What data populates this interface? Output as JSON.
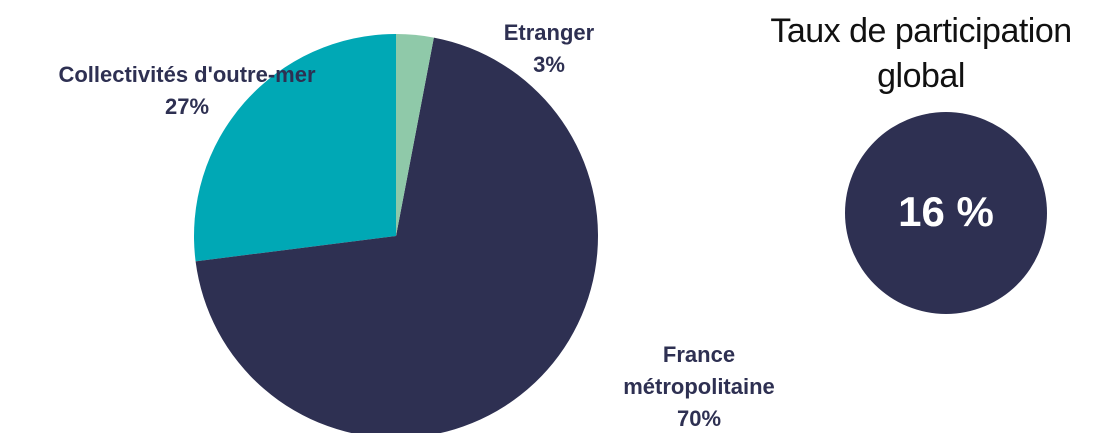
{
  "chart_data": {
    "type": "pie",
    "categories": [
      "Etranger",
      "France métropolitaine",
      "Collectivités d'outre-mer"
    ],
    "values": [
      3,
      70,
      27
    ],
    "value_labels": [
      "3%",
      "70%",
      "27%"
    ],
    "colors": [
      "#8fc9a9",
      "#2e3052",
      "#00a8b5"
    ]
  },
  "kpi": {
    "title_lines": [
      "Taux de participation",
      "global"
    ],
    "value": 16,
    "value_label": "16 %",
    "color": "#2e3052"
  }
}
